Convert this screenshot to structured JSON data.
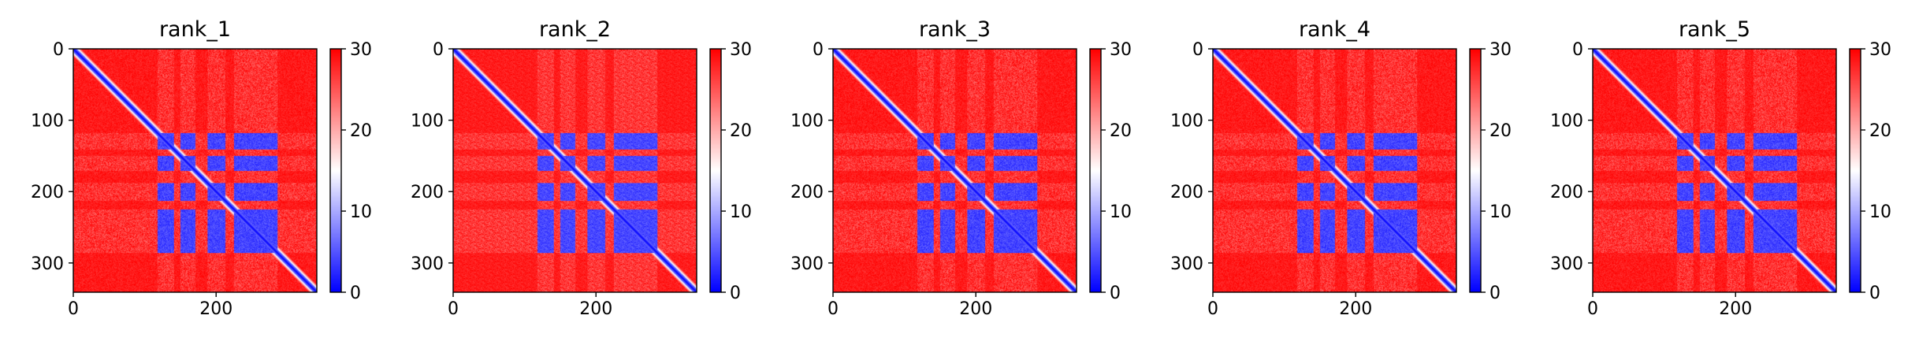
{
  "chart_data": [
    {
      "type": "heatmap",
      "title": "rank_1",
      "x_ticks": [
        "0",
        "200"
      ],
      "x_tick_values": [
        0,
        200
      ],
      "y_ticks": [
        "0",
        "100",
        "200",
        "300"
      ],
      "y_tick_values": [
        0,
        100,
        200,
        300
      ],
      "xlim": [
        0,
        341
      ],
      "ylim": [
        341,
        0
      ],
      "colorbar": {
        "ticks": [
          "0",
          "10",
          "20",
          "30"
        ],
        "tick_values": [
          0,
          10,
          20,
          30
        ],
        "range": [
          0,
          30
        ],
        "colormap": "bwr"
      },
      "grid": false
    },
    {
      "type": "heatmap",
      "title": "rank_2",
      "x_ticks": [
        "0",
        "200"
      ],
      "x_tick_values": [
        0,
        200
      ],
      "y_ticks": [
        "0",
        "100",
        "200",
        "300"
      ],
      "y_tick_values": [
        0,
        100,
        200,
        300
      ],
      "xlim": [
        0,
        341
      ],
      "ylim": [
        341,
        0
      ],
      "colorbar": {
        "ticks": [
          "0",
          "10",
          "20",
          "30"
        ],
        "tick_values": [
          0,
          10,
          20,
          30
        ],
        "range": [
          0,
          30
        ],
        "colormap": "bwr"
      },
      "grid": false
    },
    {
      "type": "heatmap",
      "title": "rank_3",
      "x_ticks": [
        "0",
        "200"
      ],
      "x_tick_values": [
        0,
        200
      ],
      "y_ticks": [
        "0",
        "100",
        "200",
        "300"
      ],
      "y_tick_values": [
        0,
        100,
        200,
        300
      ],
      "xlim": [
        0,
        341
      ],
      "ylim": [
        341,
        0
      ],
      "colorbar": {
        "ticks": [
          "0",
          "10",
          "20",
          "30"
        ],
        "tick_values": [
          0,
          10,
          20,
          30
        ],
        "range": [
          0,
          30
        ],
        "colormap": "bwr"
      },
      "grid": false
    },
    {
      "type": "heatmap",
      "title": "rank_4",
      "x_ticks": [
        "0",
        "200"
      ],
      "x_tick_values": [
        0,
        200
      ],
      "y_ticks": [
        "0",
        "100",
        "200",
        "300"
      ],
      "y_tick_values": [
        0,
        100,
        200,
        300
      ],
      "xlim": [
        0,
        341
      ],
      "ylim": [
        341,
        0
      ],
      "colorbar": {
        "ticks": [
          "0",
          "10",
          "20",
          "30"
        ],
        "tick_values": [
          0,
          10,
          20,
          30
        ],
        "range": [
          0,
          30
        ],
        "colormap": "bwr"
      },
      "grid": false
    },
    {
      "type": "heatmap",
      "title": "rank_5",
      "x_ticks": [
        "0",
        "200"
      ],
      "x_tick_values": [
        0,
        200
      ],
      "y_ticks": [
        "0",
        "100",
        "200",
        "300"
      ],
      "y_tick_values": [
        0,
        100,
        200,
        300
      ],
      "xlim": [
        0,
        341
      ],
      "ylim": [
        341,
        0
      ],
      "colorbar": {
        "ticks": [
          "0",
          "10",
          "20",
          "30"
        ],
        "tick_values": [
          0,
          10,
          20,
          30
        ],
        "range": [
          0,
          30
        ],
        "colormap": "bwr"
      },
      "grid": false
    }
  ],
  "heatmap_structure": {
    "matrix_size": 341,
    "diagonal_band_halfwidth": 4,
    "block_ranges": [
      [
        118,
        140
      ],
      [
        150,
        170
      ],
      [
        188,
        212
      ],
      [
        225,
        285
      ]
    ],
    "value_diagonal": 0,
    "value_block": 2,
    "value_background": 30
  },
  "colors": {
    "low": "#0000ff",
    "mid": "#ffffff",
    "high": "#ff0000"
  }
}
